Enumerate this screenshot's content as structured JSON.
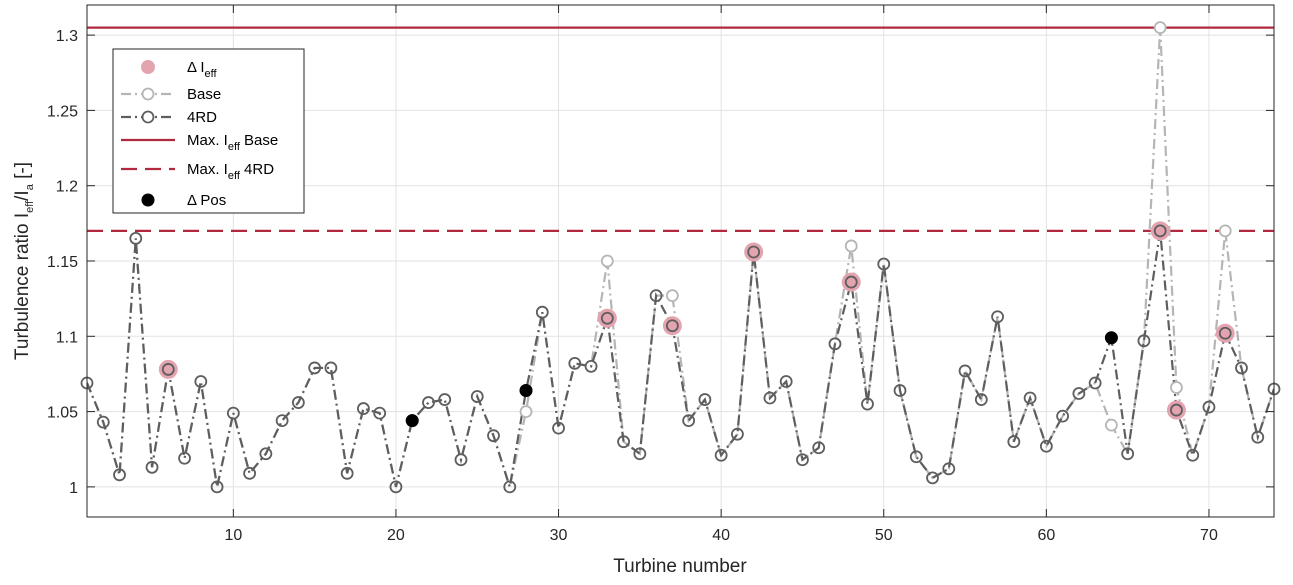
{
  "chart_data": {
    "type": "line",
    "xlabel": "Turbine number",
    "ylabel": "Turbulence ratio I",
    "ylabel_sub1": "eff",
    "ylabel_mid": "/I",
    "ylabel_sub2": "a",
    "ylabel_end": " [-]",
    "xlim": [
      1,
      74
    ],
    "ylim": [
      0.98,
      1.32
    ],
    "xticks": [
      10,
      20,
      30,
      40,
      50,
      60,
      70
    ],
    "yticks": [
      1,
      1.05,
      1.1,
      1.15,
      1.2,
      1.25,
      1.3
    ],
    "ytick_labels": [
      "1",
      "1.05",
      "1.1",
      "1.15",
      "1.2",
      "1.25",
      "1.3"
    ],
    "grid": true,
    "legend_position": "top-left",
    "legend": [
      {
        "text": "Δ I",
        "sub": "eff",
        "suffix": ""
      },
      {
        "text": "Base",
        "sub": "",
        "suffix": ""
      },
      {
        "text": "4RD",
        "sub": "",
        "suffix": ""
      },
      {
        "text": "Max. I",
        "sub": "eff",
        "suffix": " Base"
      },
      {
        "text": "Max. I",
        "sub": "eff",
        "suffix": " 4RD"
      },
      {
        "text": "Δ Pos",
        "sub": "",
        "suffix": ""
      }
    ],
    "colors": {
      "base": "#b5b5b5",
      "rd4": "#5e5e5e",
      "max_line": "#b0293f",
      "delta_ieff": "#e3a4b0",
      "delta_pos": "#000000",
      "grid": "#e2e2e2",
      "axis": "#262626"
    },
    "reference_lines": [
      {
        "name": "Max. Ieff Base",
        "y": 1.305,
        "style": "solid"
      },
      {
        "name": "Max. Ieff 4RD",
        "y": 1.17,
        "style": "dashed"
      }
    ],
    "series": [
      {
        "name": "4RD",
        "x": [
          1,
          2,
          3,
          4,
          5,
          6,
          7,
          8,
          9,
          10,
          11,
          12,
          13,
          14,
          15,
          16,
          17,
          18,
          19,
          20,
          21,
          22,
          23,
          24,
          25,
          26,
          27,
          28,
          29,
          30,
          31,
          32,
          33,
          34,
          35,
          36,
          37,
          38,
          39,
          40,
          41,
          42,
          43,
          44,
          45,
          46,
          47,
          48,
          49,
          50,
          51,
          52,
          53,
          54,
          55,
          56,
          57,
          58,
          59,
          60,
          61,
          62,
          63,
          64,
          65,
          66,
          67,
          68,
          69,
          70,
          71,
          72,
          73,
          74
        ],
        "values": [
          1.069,
          1.043,
          1.008,
          1.165,
          1.013,
          1.078,
          1.019,
          1.07,
          1.0,
          1.049,
          1.009,
          1.022,
          1.044,
          1.056,
          1.079,
          1.079,
          1.009,
          1.052,
          1.049,
          1.0,
          1.044,
          1.056,
          1.058,
          1.018,
          1.06,
          1.034,
          1.0,
          1.064,
          1.116,
          1.039,
          1.082,
          1.08,
          1.112,
          1.03,
          1.022,
          1.127,
          1.107,
          1.044,
          1.058,
          1.021,
          1.035,
          1.156,
          1.059,
          1.07,
          1.018,
          1.026,
          1.095,
          1.136,
          1.055,
          1.148,
          1.064,
          1.02,
          1.006,
          1.012,
          1.077,
          1.058,
          1.113,
          1.03,
          1.059,
          1.027,
          1.047,
          1.062,
          1.069,
          1.099,
          1.022,
          1.097,
          1.17,
          1.051,
          1.021,
          1.053,
          1.102,
          1.079,
          1.033,
          1.065
        ]
      },
      {
        "name": "Base",
        "x": [
          1,
          2,
          3,
          4,
          5,
          6,
          7,
          8,
          9,
          10,
          11,
          12,
          13,
          14,
          15,
          16,
          17,
          18,
          19,
          20,
          21,
          22,
          23,
          24,
          25,
          26,
          27,
          28,
          29,
          30,
          31,
          32,
          33,
          34,
          35,
          36,
          37,
          38,
          39,
          40,
          41,
          42,
          43,
          44,
          45,
          46,
          47,
          48,
          49,
          50,
          51,
          52,
          53,
          54,
          55,
          56,
          57,
          58,
          59,
          60,
          61,
          62,
          63,
          64,
          65,
          66,
          67,
          68,
          69,
          70,
          71,
          72,
          73,
          74
        ],
        "values": [
          1.069,
          1.043,
          1.008,
          1.165,
          1.013,
          1.078,
          1.019,
          1.07,
          1.0,
          1.049,
          1.009,
          1.022,
          1.044,
          1.056,
          1.079,
          1.079,
          1.009,
          1.052,
          1.049,
          1.0,
          1.044,
          1.056,
          1.058,
          1.018,
          1.06,
          1.034,
          1.0,
          1.05,
          1.116,
          1.039,
          1.082,
          1.08,
          1.15,
          1.03,
          1.022,
          1.127,
          1.127,
          1.044,
          1.058,
          1.021,
          1.035,
          1.156,
          1.059,
          1.07,
          1.018,
          1.026,
          1.095,
          1.16,
          1.055,
          1.148,
          1.064,
          1.02,
          1.006,
          1.012,
          1.077,
          1.058,
          1.113,
          1.03,
          1.059,
          1.027,
          1.047,
          1.062,
          1.069,
          1.041,
          1.022,
          1.097,
          1.305,
          1.066,
          1.021,
          1.053,
          1.17,
          1.079,
          1.033,
          1.065
        ]
      }
    ],
    "delta_ieff_points": [
      {
        "x": 6,
        "y": 1.078
      },
      {
        "x": 33,
        "y": 1.112
      },
      {
        "x": 37,
        "y": 1.107
      },
      {
        "x": 42,
        "y": 1.156
      },
      {
        "x": 48,
        "y": 1.136
      },
      {
        "x": 67,
        "y": 1.17
      },
      {
        "x": 68,
        "y": 1.051
      },
      {
        "x": 71,
        "y": 1.102
      }
    ],
    "delta_pos_points": [
      {
        "x": 21,
        "y": 1.044
      },
      {
        "x": 28,
        "y": 1.064
      },
      {
        "x": 64,
        "y": 1.099
      }
    ]
  }
}
